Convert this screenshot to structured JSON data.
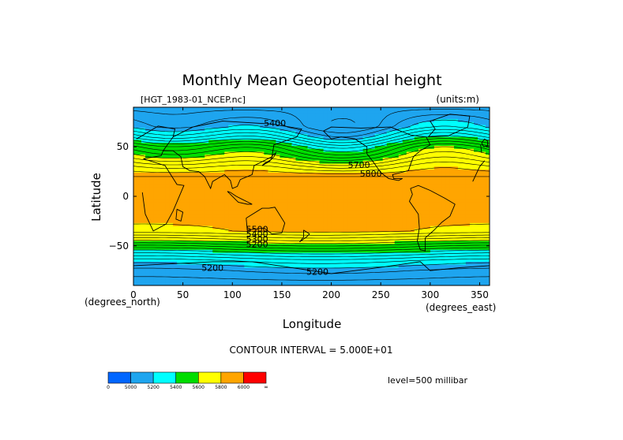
{
  "chart_data": {
    "type": "heatmap",
    "title": "Monthly Mean Geopotential height",
    "file_label": "[HGT_1983-01_NCEP.nc]",
    "units_label": "(units:m)",
    "xlabel": "Longitude",
    "ylabel": "Latitude",
    "x_unit_label": "(degrees_east)",
    "y_unit_label": "(degrees_north)",
    "xlim": [
      0,
      360
    ],
    "ylim": [
      -90,
      90
    ],
    "x_ticks": [
      0,
      50,
      100,
      150,
      200,
      250,
      300,
      350
    ],
    "y_ticks": [
      -50,
      0,
      50
    ],
    "contour_interval_text": "CONTOUR INTERVAL = 5.000E+01",
    "level_text": "level=500 millibar",
    "contour_labels": [
      {
        "text": "5400",
        "x": 143,
        "y": 74
      },
      {
        "text": "5700",
        "x": 228,
        "y": 32
      },
      {
        "text": "5800",
        "x": 240,
        "y": 23
      },
      {
        "text": "5200",
        "x": 80,
        "y": -72
      },
      {
        "text": "5200",
        "x": 186,
        "y": -76
      },
      {
        "text": "5500",
        "x": 125,
        "y": -33
      },
      {
        "text": "5400",
        "x": 125,
        "y": -38
      },
      {
        "text": "5300",
        "x": 125,
        "y": -43
      },
      {
        "text": "5200",
        "x": 125,
        "y": -48
      }
    ],
    "levels": [
      5000,
      5200,
      5400,
      5600,
      5800,
      6000
    ],
    "colorbar": {
      "bins": [
        {
          "color": "#0066ff",
          "label": "0"
        },
        {
          "color": "#1ea5ef",
          "label": "5000"
        },
        {
          "color": "#00ffff",
          "label": "5200"
        },
        {
          "color": "#00dd00",
          "label": "5400"
        },
        {
          "color": "#ffff00",
          "label": "5600"
        },
        {
          "color": "#ffa500",
          "label": "5800"
        },
        {
          "color": "#ff0000",
          "label": "6000"
        }
      ],
      "end_label": "∞"
    },
    "field_zonal_profile": [
      {
        "lat": -90,
        "value": 5060
      },
      {
        "lat": -75,
        "value": 5150
      },
      {
        "lat": -65,
        "value": 5250
      },
      {
        "lat": -55,
        "value": 5420
      },
      {
        "lat": -45,
        "value": 5620
      },
      {
        "lat": -35,
        "value": 5800
      },
      {
        "lat": 0,
        "value": 5860
      },
      {
        "lat": 20,
        "value": 5850
      },
      {
        "lat": 30,
        "value": 5740
      },
      {
        "lat": 40,
        "value": 5600
      },
      {
        "lat": 50,
        "value": 5480
      },
      {
        "lat": 60,
        "value": 5300
      },
      {
        "lat": 70,
        "value": 5160
      },
      {
        "lat": 90,
        "value": 5080
      }
    ]
  }
}
